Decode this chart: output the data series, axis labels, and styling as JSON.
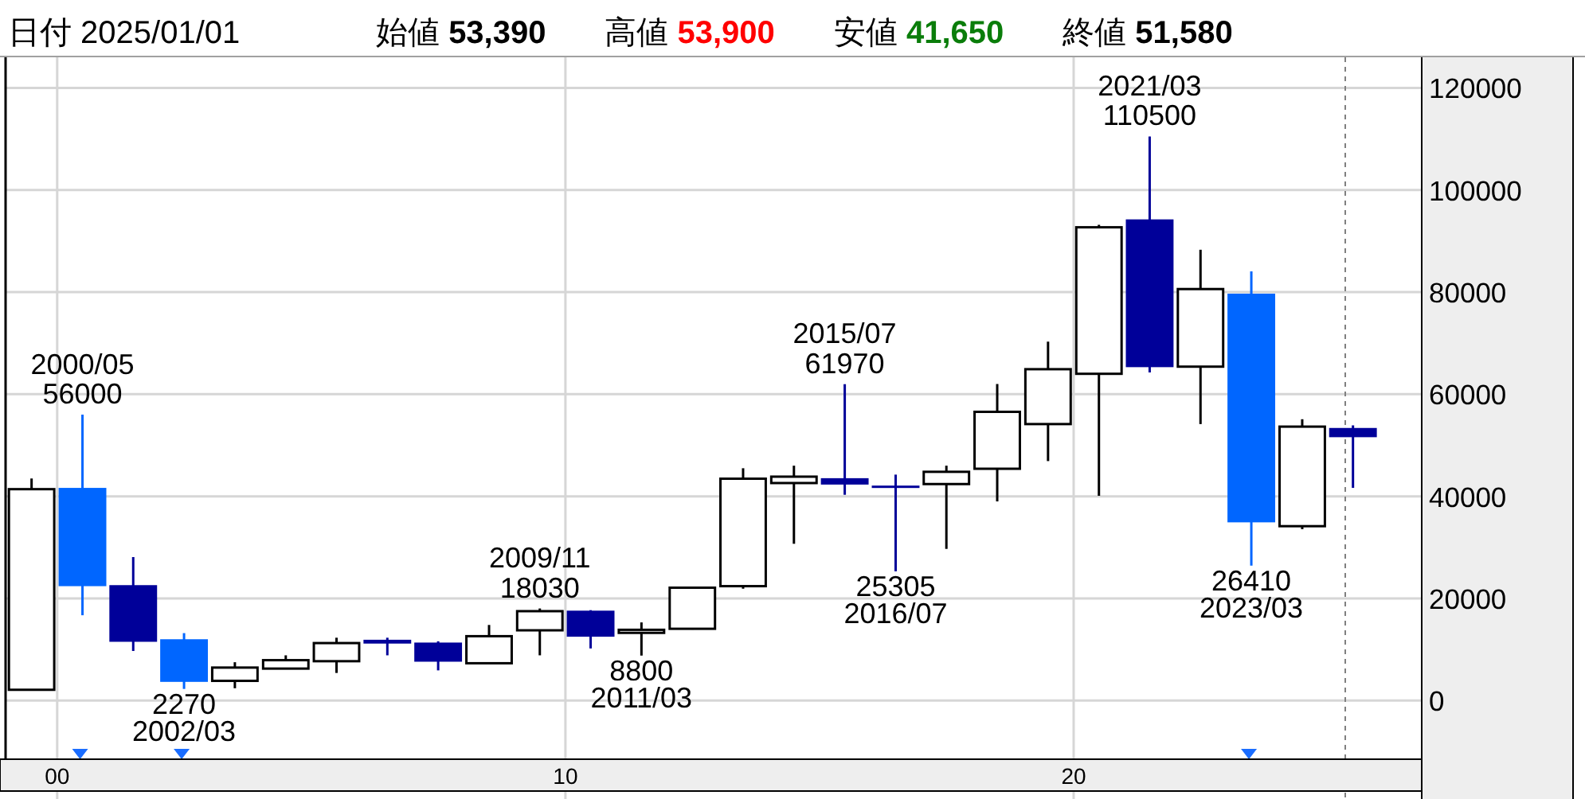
{
  "chart_data": {
    "type": "candlestick",
    "title": "日付 2025/01/01",
    "annotations": [
      "始値 **53,390**",
      "高値 **53,900**",
      "安値 **41,650**",
      "終値 **51,580**",
      {
        "text": "2000/05",
        "x": "2000-07",
        "y": 56000
      },
      {
        "text": "56000",
        "x": "2000-07",
        "y": 56000
      },
      {
        "text": "2270",
        "x": "2002-07",
        "y": 2270
      },
      {
        "text": "2002/03",
        "x": "2002-07",
        "y": 2270
      },
      {
        "text": "2009/11",
        "x": "2009-07",
        "y": 18030
      },
      {
        "text": "18030",
        "x": "2009-07",
        "y": 18030
      },
      {
        "text": "8800",
        "x": "2011-07",
        "y": 8800
      },
      {
        "text": "2011/03",
        "x": "2011-07",
        "y": 8800
      },
      {
        "text": "2015/07",
        "x": "2015-07",
        "y": 61970
      },
      {
        "text": "61970",
        "x": "2015-07",
        "y": 61970
      },
      {
        "text": "25305",
        "x": "2016-07",
        "y": 25305
      },
      {
        "text": "2016/07",
        "x": "2016-07",
        "y": 25305
      },
      {
        "text": "2021/03",
        "x": "2021-07",
        "y": 110500
      },
      {
        "text": "110500",
        "x": "2021-07",
        "y": 110500
      },
      {
        "text": "26410",
        "x": "2023-07",
        "y": 26410
      },
      {
        "text": "2023/03",
        "x": "2023-07",
        "y": 26410
      }
    ],
    "x": [
      "1999-07",
      "2000-07",
      "2001-07",
      "2002-07",
      "2003-07",
      "2004-07",
      "2005-07",
      "2006-07",
      "2007-07",
      "2008-07",
      "2009-07",
      "2010-07",
      "2011-07",
      "2012-07",
      "2013-07",
      "2014-07",
      "2015-07",
      "2016-07",
      "2017-07",
      "2018-07",
      "2019-07",
      "2020-07",
      "2021-07",
      "2022-07",
      "2023-07",
      "2024-07",
      "2025-07"
    ],
    "ohlc": [
      [
        2100,
        43500,
        2100,
        41400
      ],
      [
        41650,
        56000,
        16700,
        22400
      ],
      [
        22600,
        28100,
        9700,
        11500
      ],
      [
        12000,
        13200,
        2270,
        3650
      ],
      [
        3850,
        7500,
        2400,
        6450
      ],
      [
        6250,
        8850,
        6250,
        7900
      ],
      [
        7700,
        12300,
        5400,
        11250
      ],
      [
        11900,
        12300,
        8850,
        11150
      ],
      [
        11350,
        11600,
        5900,
        7600
      ],
      [
        7300,
        14800,
        7300,
        12600
      ],
      [
        13750,
        18030,
        8850,
        17500
      ],
      [
        17600,
        17700,
        10200,
        12500
      ],
      [
        13250,
        15300,
        8800,
        13850
      ],
      [
        14050,
        22100,
        13900,
        22100
      ],
      [
        22400,
        45500,
        21900,
        43450
      ],
      [
        42600,
        46000,
        30700,
        43850
      ],
      [
        43550,
        61970,
        40300,
        42300
      ],
      [
        42100,
        44250,
        25305,
        41950
      ],
      [
        42400,
        46000,
        29700,
        44800
      ],
      [
        45400,
        62000,
        39000,
        56550
      ],
      [
        54150,
        70300,
        46900,
        64900
      ],
      [
        64000,
        93200,
        40100,
        92700
      ],
      [
        94250,
        110500,
        64250,
        65300
      ],
      [
        65400,
        88300,
        54150,
        80600
      ],
      [
        79700,
        84050,
        26410,
        34900
      ],
      [
        34150,
        55100,
        33550,
        53650
      ],
      [
        53390,
        53900,
        41650,
        51580
      ]
    ],
    "colors": [
      "#000000",
      "#0066ff",
      "#000099",
      "#0066ff",
      "#000000",
      "#000000",
      "#000000",
      "#000099",
      "#000099",
      "#000000",
      "#000000",
      "#000099",
      "#000000",
      "#000000",
      "#000000",
      "#000000",
      "#000099",
      "#000099",
      "#000000",
      "#000000",
      "#000000",
      "#000000",
      "#000099",
      "#000000",
      "#0066ff",
      "#000000",
      "#000099"
    ],
    "xlim": [
      "1999",
      "2026-11"
    ],
    "xticks": [
      {
        "value": "2000",
        "label": "00"
      },
      {
        "value": "2010",
        "label": "10"
      },
      {
        "value": "2020",
        "label": "20"
      }
    ],
    "ylim": [
      -11500,
      126000
    ],
    "yticks": [
      0,
      20000,
      40000,
      60000,
      80000,
      100000,
      120000
    ],
    "grid": true,
    "ref_lines": [
      {
        "axis": "x",
        "value": "2025-05",
        "color": "#808080",
        "line_style": "dashed"
      }
    ]
  }
}
